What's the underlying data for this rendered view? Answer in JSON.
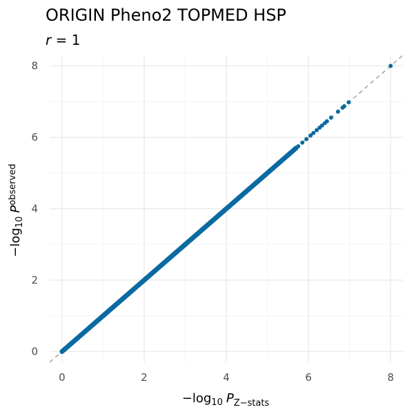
{
  "chart_data": {
    "type": "scatter",
    "title": "ORIGIN Pheno2 TOPMED HSP",
    "subtitle_italic": "r",
    "subtitle_rest": " = 1",
    "xlabel": {
      "prefix": "−log",
      "subscript": "10",
      "symbol": "P",
      "symbol_subscript": "Z−stats"
    },
    "ylabel": {
      "prefix": "−log",
      "subscript": "10",
      "symbol": "P",
      "symbol_subscript": "observed"
    },
    "xlim": [
      -0.3,
      8.3
    ],
    "ylim": [
      -0.3,
      8.3
    ],
    "xticks": [
      0,
      2,
      4,
      6,
      8
    ],
    "yticks": [
      0,
      2,
      4,
      6,
      8
    ],
    "x_tick_labels": [
      "0",
      "2",
      "4",
      "6",
      "8"
    ],
    "y_tick_labels": [
      "0",
      "2",
      "4",
      "6",
      "8"
    ],
    "grid": true,
    "reference_line": "y = x (dashed)",
    "dense_segment": {
      "from": 0,
      "to": 5.7
    },
    "points": [
      [
        5.75,
        5.75
      ],
      [
        5.85,
        5.85
      ],
      [
        5.95,
        5.95
      ],
      [
        6.05,
        6.05
      ],
      [
        6.12,
        6.12
      ],
      [
        6.2,
        6.2
      ],
      [
        6.27,
        6.27
      ],
      [
        6.33,
        6.33
      ],
      [
        6.4,
        6.4
      ],
      [
        6.45,
        6.45
      ],
      [
        6.55,
        6.55
      ],
      [
        6.72,
        6.72
      ],
      [
        6.83,
        6.83
      ],
      [
        6.87,
        6.87
      ],
      [
        6.98,
        6.98
      ],
      [
        8.0,
        8.0
      ]
    ],
    "colors": {
      "points": "#0a6aa1",
      "reference": "#a6a6a6",
      "grid_major": "#ebebeb",
      "grid_minor": "#f4f4f4"
    }
  }
}
